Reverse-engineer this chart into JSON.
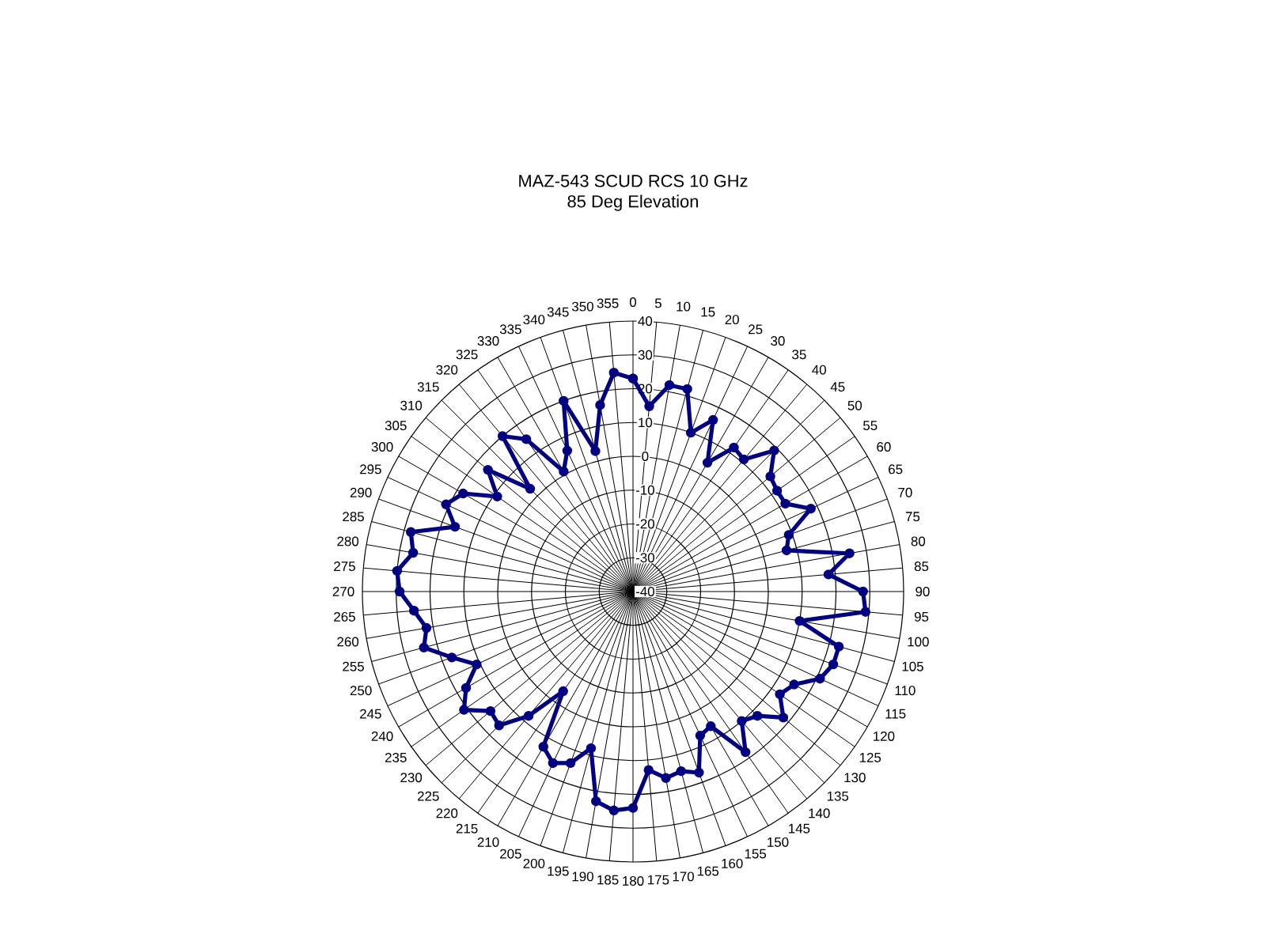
{
  "chart_data": {
    "type": "radar",
    "title": "MAZ-543 SCUD RCS 10 GHz",
    "subtitle": "85 Deg Elevation",
    "categories": [
      "0",
      "5",
      "10",
      "15",
      "20",
      "25",
      "30",
      "35",
      "40",
      "45",
      "50",
      "55",
      "60",
      "65",
      "70",
      "75",
      "80",
      "85",
      "90",
      "95",
      "100",
      "105",
      "110",
      "115",
      "120",
      "125",
      "130",
      "135",
      "140",
      "145",
      "150",
      "155",
      "160",
      "165",
      "170",
      "175",
      "180",
      "185",
      "190",
      "195",
      "200",
      "205",
      "210",
      "215",
      "220",
      "225",
      "230",
      "235",
      "240",
      "245",
      "250",
      "255",
      "260",
      "265",
      "270",
      "275",
      "280",
      "285",
      "290",
      "295",
      "300",
      "305",
      "310",
      "315",
      "320",
      "325",
      "330",
      "335",
      "340",
      "345",
      "350",
      "355"
    ],
    "series": [
      {
        "color": "#000080",
        "values": [
          23,
          15,
          22,
          22,
          10,
          16,
          4,
          12,
          11,
          19,
          13,
          12,
          12,
          18,
          9,
          7,
          25,
          18,
          28,
          29,
          10,
          23,
          23,
          21,
          15,
          13,
          18,
          12,
          10,
          18,
          6,
          7,
          17,
          15,
          16,
          13,
          24,
          25,
          23,
          8,
          14,
          16,
          13,
          -4,
          8,
          16,
          15,
          21,
          17,
          11,
          17,
          24,
          22,
          25,
          29,
          30,
          26,
          28,
          16,
          21,
          18,
          9,
          16,
          3,
          20,
          15,
          1,
          6,
          20,
          3,
          16,
          25
        ]
      }
    ],
    "ylim": [
      -40,
      40
    ],
    "yticks": [
      -40,
      -30,
      -20,
      -10,
      0,
      10,
      20,
      30,
      40
    ],
    "grid": true,
    "marker": "circle",
    "line_style": "solid"
  }
}
